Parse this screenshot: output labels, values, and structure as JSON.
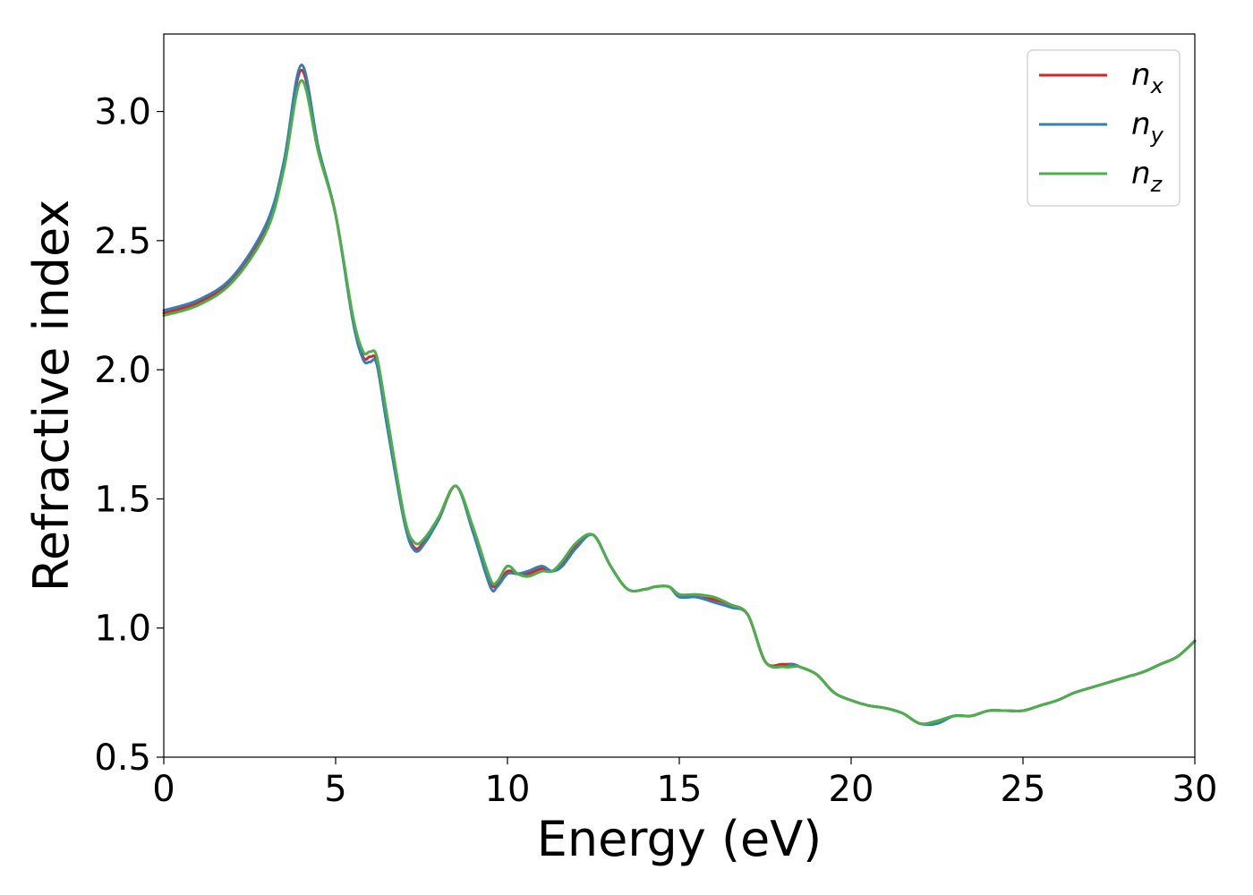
{
  "chart_data": {
    "type": "line",
    "title": "",
    "xlabel": "Energy (eV)",
    "ylabel": "Refractive index",
    "xlim": [
      0,
      30
    ],
    "ylim": [
      0.5,
      3.3
    ],
    "xticks": [
      0,
      5,
      10,
      15,
      20,
      25,
      30
    ],
    "xtick_labels": [
      "0",
      "5",
      "10",
      "15",
      "20",
      "25",
      "30"
    ],
    "yticks": [
      0.5,
      1.0,
      1.5,
      2.0,
      2.5,
      3.0
    ],
    "ytick_labels": [
      "0.5",
      "1.0",
      "1.5",
      "2.0",
      "2.5",
      "3.0"
    ],
    "grid": false,
    "legend_position": "top-right",
    "x": [
      0,
      1,
      2,
      3,
      3.5,
      4.0,
      4.5,
      5.0,
      5.5,
      5.8,
      6.0,
      6.2,
      6.5,
      7.0,
      7.3,
      7.6,
      8.0,
      8.5,
      9.0,
      9.5,
      9.7,
      10.0,
      10.3,
      10.6,
      11.0,
      11.3,
      11.6,
      12.0,
      12.5,
      13.0,
      13.5,
      14.0,
      14.3,
      14.7,
      15.0,
      15.5,
      16.0,
      16.5,
      17.0,
      17.5,
      18.0,
      18.3,
      18.5,
      19.0,
      19.5,
      20.0,
      20.5,
      21.0,
      21.5,
      22.0,
      22.5,
      23.0,
      23.5,
      24.0,
      24.5,
      25.0,
      25.5,
      26.0,
      26.5,
      27.0,
      27.5,
      28.0,
      28.5,
      29.0,
      29.5,
      30.0
    ],
    "series": [
      {
        "name": "n",
        "subscript": "x",
        "color": "#d62728",
        "values": [
          2.22,
          2.26,
          2.35,
          2.56,
          2.8,
          3.16,
          2.85,
          2.6,
          2.2,
          2.05,
          2.05,
          2.03,
          1.8,
          1.42,
          1.31,
          1.34,
          1.42,
          1.55,
          1.38,
          1.18,
          1.17,
          1.22,
          1.21,
          1.21,
          1.23,
          1.22,
          1.25,
          1.32,
          1.36,
          1.24,
          1.15,
          1.15,
          1.16,
          1.16,
          1.13,
          1.12,
          1.11,
          1.09,
          1.05,
          0.87,
          0.86,
          0.86,
          0.85,
          0.82,
          0.75,
          0.72,
          0.7,
          0.69,
          0.67,
          0.63,
          0.64,
          0.66,
          0.66,
          0.68,
          0.68,
          0.68,
          0.7,
          0.72,
          0.75,
          0.77,
          0.79,
          0.81,
          0.83,
          0.86,
          0.89,
          0.95
        ]
      },
      {
        "name": "n",
        "subscript": "y",
        "color": "#377eb8",
        "values": [
          2.23,
          2.27,
          2.36,
          2.57,
          2.81,
          3.18,
          2.86,
          2.6,
          2.19,
          2.04,
          2.03,
          2.02,
          1.78,
          1.41,
          1.3,
          1.33,
          1.42,
          1.55,
          1.37,
          1.16,
          1.16,
          1.21,
          1.21,
          1.22,
          1.24,
          1.22,
          1.24,
          1.31,
          1.36,
          1.24,
          1.15,
          1.15,
          1.16,
          1.16,
          1.12,
          1.12,
          1.1,
          1.08,
          1.05,
          0.87,
          0.85,
          0.86,
          0.85,
          0.82,
          0.75,
          0.72,
          0.7,
          0.69,
          0.67,
          0.63,
          0.63,
          0.66,
          0.66,
          0.68,
          0.68,
          0.68,
          0.7,
          0.72,
          0.75,
          0.77,
          0.79,
          0.81,
          0.83,
          0.86,
          0.89,
          0.95
        ]
      },
      {
        "name": "n",
        "subscript": "z",
        "color": "#4daf4a",
        "values": [
          2.21,
          2.25,
          2.34,
          2.54,
          2.78,
          3.12,
          2.84,
          2.6,
          2.21,
          2.07,
          2.07,
          2.05,
          1.82,
          1.43,
          1.33,
          1.35,
          1.43,
          1.55,
          1.39,
          1.19,
          1.18,
          1.24,
          1.21,
          1.2,
          1.22,
          1.22,
          1.26,
          1.33,
          1.36,
          1.24,
          1.15,
          1.15,
          1.16,
          1.16,
          1.13,
          1.13,
          1.12,
          1.09,
          1.05,
          0.87,
          0.85,
          0.85,
          0.85,
          0.82,
          0.75,
          0.72,
          0.7,
          0.69,
          0.67,
          0.63,
          0.64,
          0.66,
          0.66,
          0.68,
          0.68,
          0.68,
          0.7,
          0.72,
          0.75,
          0.77,
          0.79,
          0.81,
          0.83,
          0.86,
          0.89,
          0.95
        ]
      }
    ]
  }
}
